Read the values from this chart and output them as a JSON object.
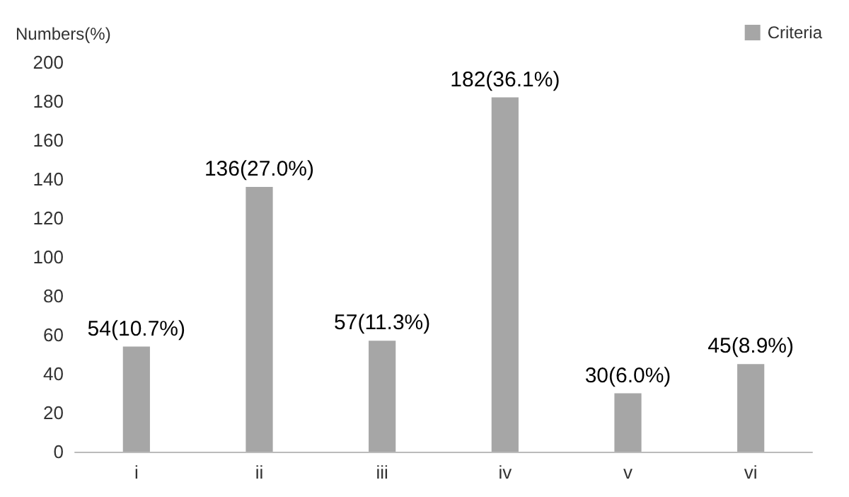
{
  "chart_data": {
    "type": "bar",
    "ylabel": "Numbers(%)",
    "categories": [
      "i",
      "ii",
      "iii",
      "iv",
      "v",
      "vi"
    ],
    "series": [
      {
        "name": "Criteria",
        "color": "#a6a6a6",
        "values": [
          54,
          136,
          57,
          182,
          30,
          45
        ],
        "value_labels": [
          "54(10.7%)",
          "136(27.0%)",
          "57(11.3%)",
          "182(36.1%)",
          "30(6.0%)",
          "45(8.9%)"
        ]
      }
    ],
    "ylim": [
      0,
      200
    ],
    "yticks": [
      0,
      20,
      40,
      60,
      80,
      100,
      120,
      140,
      160,
      180,
      200
    ],
    "grid": false,
    "legend": "top right"
  }
}
